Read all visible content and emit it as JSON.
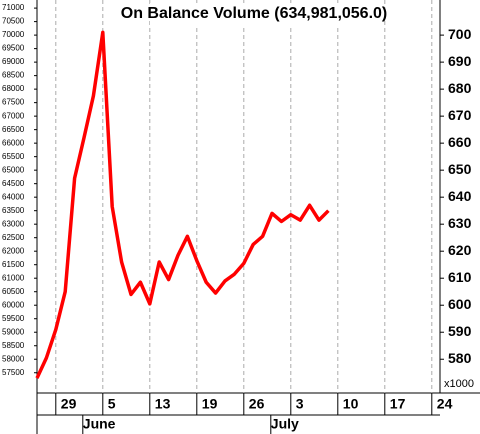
{
  "chart_data": {
    "type": "line",
    "title": "On Balance Volume (634,981,056.0)",
    "categories": [
      null,
      null,
      "29",
      null,
      null,
      null,
      null,
      "5",
      null,
      null,
      null,
      null,
      "13",
      null,
      null,
      null,
      null,
      "19",
      null,
      null,
      null,
      null,
      "26",
      null,
      null,
      null,
      null,
      "3",
      null,
      null,
      null,
      null,
      "10",
      null,
      null,
      null,
      null,
      "17",
      null,
      null,
      null,
      null,
      "24"
    ],
    "months": [
      null,
      null,
      null,
      null,
      null,
      null,
      null,
      "June",
      null,
      null,
      null,
      null,
      null,
      null,
      null,
      null,
      null,
      null,
      null,
      null,
      null,
      null,
      null,
      null,
      null,
      null,
      null,
      "July",
      null,
      null,
      null,
      null,
      null,
      null,
      null,
      null,
      null,
      null,
      null,
      null,
      null,
      null,
      null
    ],
    "series": [
      {
        "color": "#ff0000",
        "values": [
          57300,
          58050,
          59100,
          60500,
          64700,
          66200,
          67750,
          70100,
          63650,
          61600,
          60400,
          60850,
          60050,
          61600,
          60950,
          61850,
          62550,
          61650,
          60850,
          60450,
          60900,
          61150,
          61550,
          62250,
          62550,
          63400,
          63100,
          63350,
          63150,
          63700,
          63150,
          63500,
          null,
          null,
          null,
          null,
          null,
          null,
          null,
          null,
          null,
          null,
          null
        ]
      }
    ],
    "ylim": [
      56750,
      71300
    ],
    "yticks": [
      57500,
      58000,
      58500,
      59000,
      59500,
      60000,
      60500,
      61000,
      61500,
      62000,
      62500,
      63000,
      63500,
      64000,
      64500,
      65000,
      65500,
      66000,
      66500,
      67000,
      67500,
      68000,
      68500,
      69000,
      69500,
      70000,
      70500,
      71000
    ],
    "y2lim": [
      567.5,
      713
    ],
    "y2ticks": [
      580,
      590,
      600,
      610,
      620,
      630,
      640,
      650,
      660,
      670,
      680,
      690,
      700
    ],
    "y2_unit": "x1000",
    "grid": true
  }
}
